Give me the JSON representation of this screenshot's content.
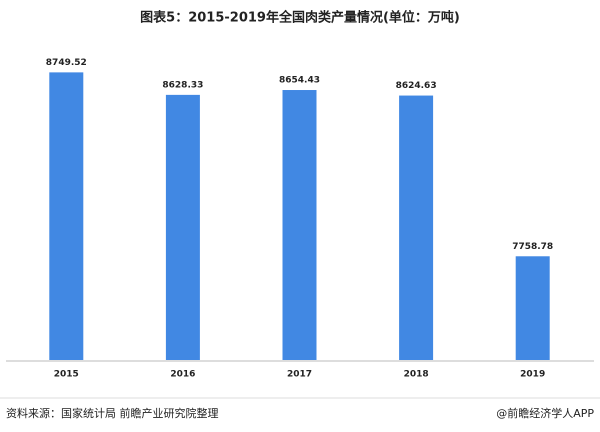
{
  "chart_data": {
    "type": "bar",
    "title": "图表5：2015-2019年全国肉类产量情况(单位：万吨)",
    "categories": [
      "2015",
      "2016",
      "2017",
      "2018",
      "2019"
    ],
    "values": [
      8749.52,
      8628.33,
      8654.43,
      8624.63,
      7758.78
    ],
    "color": "#4188e3",
    "ylim": [
      7200,
      8800
    ],
    "source": "资料来源：国家统计局 前瞻产业研究院整理",
    "credit": "@前瞻经济学人APP"
  }
}
